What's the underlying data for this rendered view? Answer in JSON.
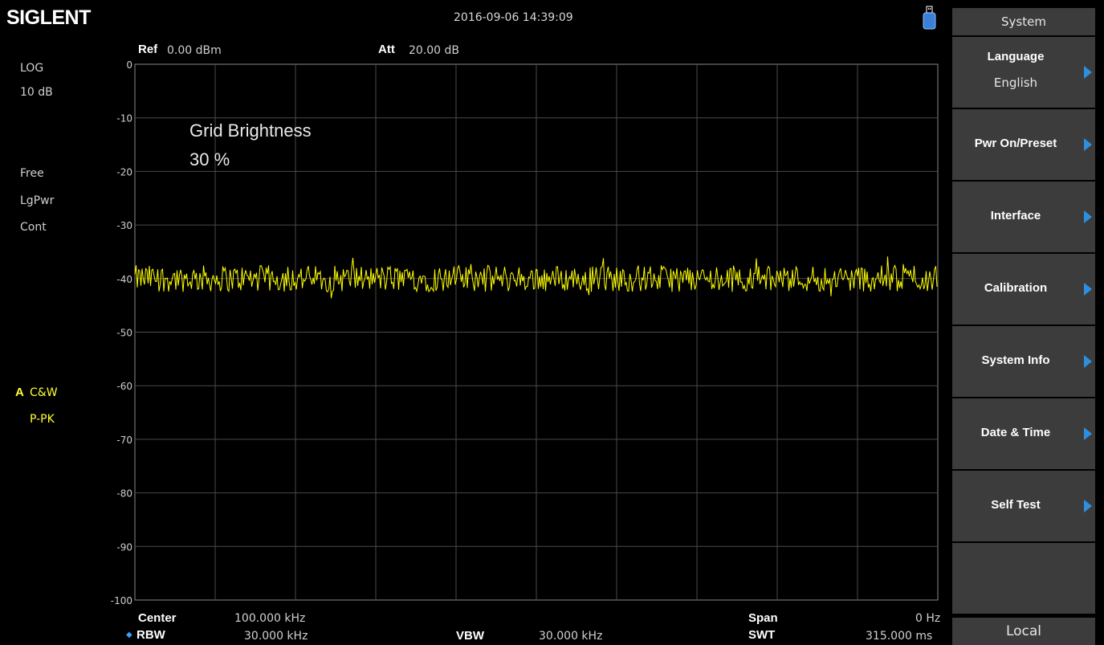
{
  "header": {
    "logo": "SIGLENT",
    "datetime": "2016-09-06  14:39:09"
  },
  "params": {
    "ref_label": "Ref",
    "ref_value": "0.00 dBm",
    "att_label": "Att",
    "att_value": "20.00 dB"
  },
  "left_info": {
    "scale_type": "LOG",
    "scale_div": "10 dB",
    "trigger": "Free",
    "avg_type": "LgPwr",
    "sweep_mode": "Cont",
    "trace_letter": "A",
    "trace_mode": "C&W",
    "detector": "P-PK"
  },
  "overlay": {
    "title": "Grid Brightness",
    "value": "30 %"
  },
  "y_axis": {
    "ticks": [
      "0",
      "-10",
      "-20",
      "-30",
      "-40",
      "-50",
      "-60",
      "-70",
      "-80",
      "-90",
      "-100"
    ]
  },
  "bottom": {
    "center_label": "Center",
    "center_value": "100.000 kHz",
    "rbw_label": "RBW",
    "rbw_value": "30.000 kHz",
    "vbw_label": "VBW",
    "vbw_value": "30.000 kHz",
    "span_label": "Span",
    "span_value": "0 Hz",
    "swt_label": "SWT",
    "swt_value": "315.000 ms"
  },
  "menu": {
    "title": "System",
    "items": [
      {
        "label": "Language",
        "value": "English"
      },
      {
        "label": "Pwr On/Preset",
        "value": ""
      },
      {
        "label": "Interface",
        "value": ""
      },
      {
        "label": "Calibration",
        "value": ""
      },
      {
        "label": "System Info",
        "value": ""
      },
      {
        "label": "Date & Time",
        "value": ""
      },
      {
        "label": "Self Test",
        "value": ""
      },
      {
        "label": "",
        "value": ""
      }
    ],
    "local": "Local"
  },
  "colors": {
    "trace": "#ffff00",
    "grid": "#4a4a4a",
    "softkey_bg": "#3c3c3c",
    "arrow": "#2e8fe0"
  },
  "chart_data": {
    "type": "line",
    "ylim": [
      -100,
      0
    ],
    "y_unit": "dBm",
    "grid": true,
    "noise_level": -40,
    "noise_ripple": 2.5
  }
}
